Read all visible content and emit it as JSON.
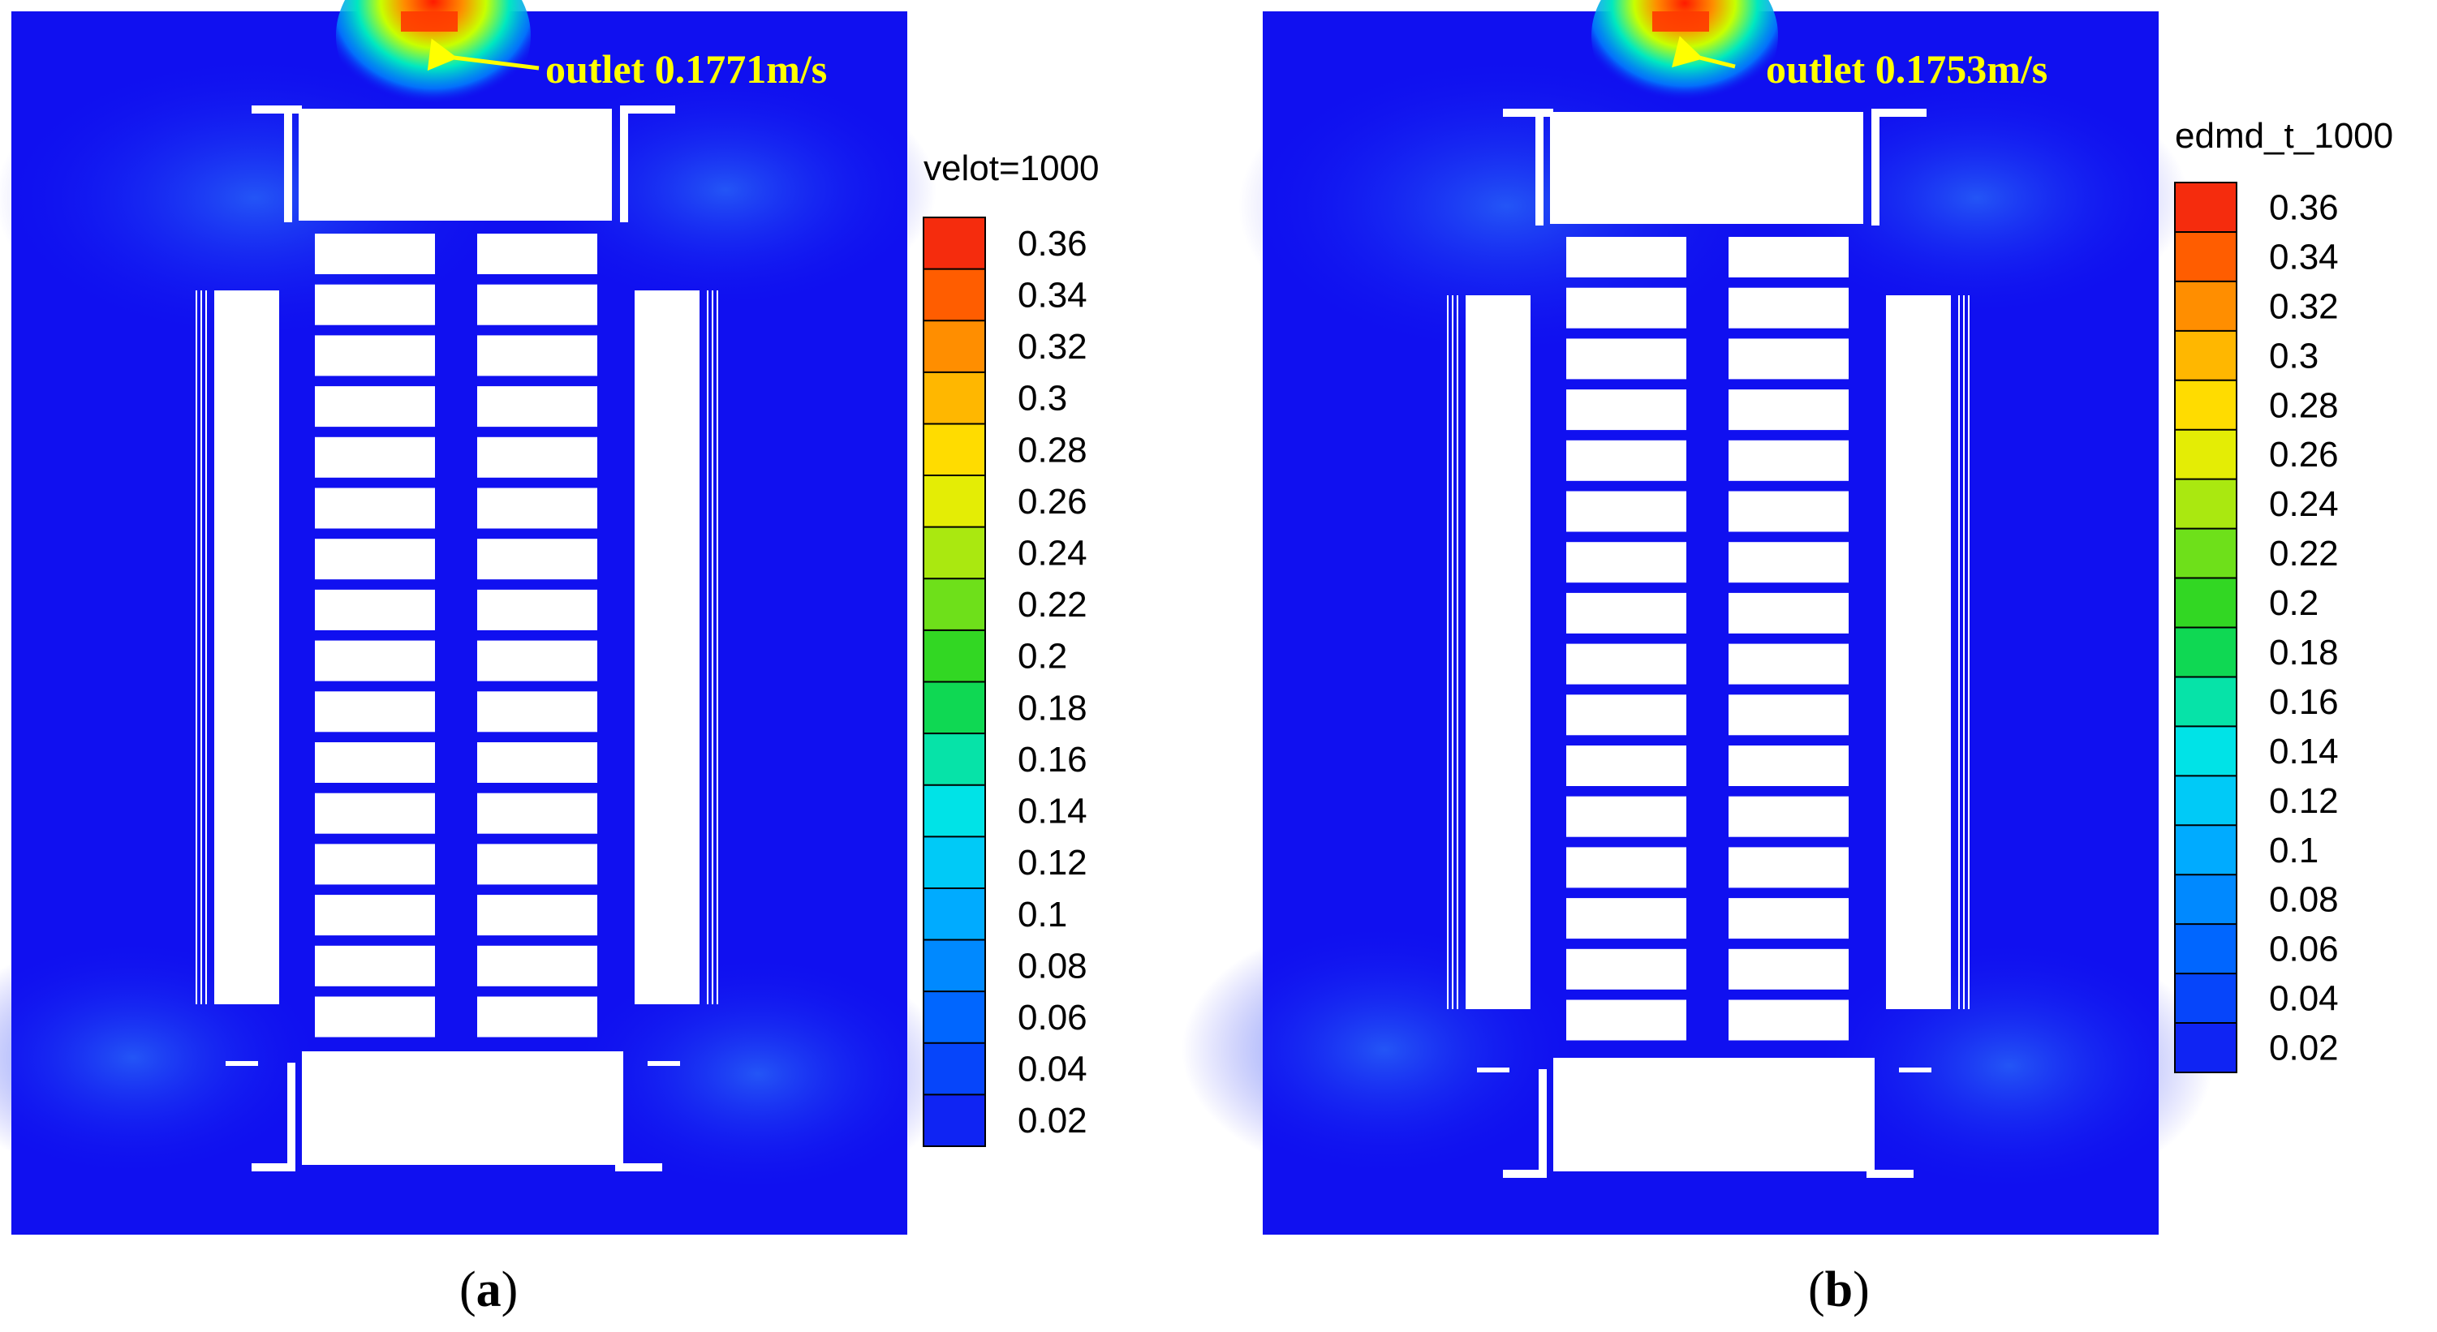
{
  "panels": [
    {
      "id": "a",
      "label": "a",
      "annotation": "outlet 0.1771m/s",
      "legend_title": "velot=1000",
      "legend_ticks": [
        "0.36",
        "0.34",
        "0.32",
        "0.3",
        "0.28",
        "0.26",
        "0.24",
        "0.22",
        "0.2",
        "0.18",
        "0.16",
        "0.14",
        "0.12",
        "0.1",
        "0.08",
        "0.06",
        "0.04",
        "0.02"
      ]
    },
    {
      "id": "b",
      "label": "b",
      "annotation": "outlet 0.1753m/s",
      "legend_title": "edmd_t_1000",
      "legend_ticks": [
        "0.36",
        "0.34",
        "0.32",
        "0.3",
        "0.28",
        "0.26",
        "0.24",
        "0.22",
        "0.2",
        "0.18",
        "0.16",
        "0.14",
        "0.12",
        "0.1",
        "0.08",
        "0.06",
        "0.04",
        "0.02"
      ]
    }
  ],
  "colors": {
    "background_flow": "#1010f0",
    "geometry": "#ffffff",
    "annotation": "#ffff00",
    "outlet_hot": "#ff2a00"
  }
}
